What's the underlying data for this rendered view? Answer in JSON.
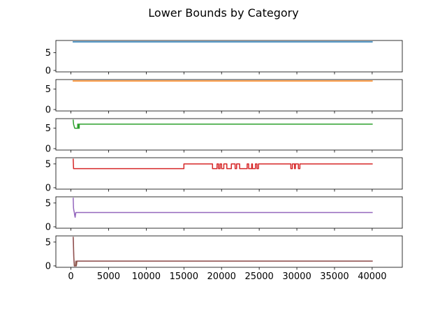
{
  "chart_data": {
    "type": "line",
    "title": "Lower Bounds by Category",
    "xlim": [
      -2000,
      44000
    ],
    "x_ticks": [
      0,
      5000,
      10000,
      15000,
      20000,
      25000,
      30000,
      35000,
      40000
    ],
    "x_tick_labels": [
      "0",
      "5000",
      "10000",
      "15000",
      "20000",
      "25000",
      "30000",
      "35000",
      "40000"
    ],
    "y_ticks": [
      0,
      5
    ],
    "y_tick_labels": [
      "0",
      "5"
    ],
    "grid": false,
    "legend": "none",
    "subplots": [
      {
        "ylim": [
          -0.4,
          8.4
        ],
        "color": "#1f77b4",
        "x": [
          300,
          40000
        ],
        "y": [
          8,
          8
        ]
      },
      {
        "ylim": [
          -0.35,
          7.35
        ],
        "color": "#ff7f0e",
        "x": [
          300,
          40000
        ],
        "y": [
          7,
          7
        ]
      },
      {
        "ylim": [
          -0.35,
          7.35
        ],
        "color": "#2ca02c",
        "x": [
          300,
          350,
          500,
          900,
          900,
          1000,
          1000,
          1100,
          1100,
          40000
        ],
        "y": [
          7,
          6,
          5,
          5,
          6,
          6,
          5,
          5,
          6,
          6
        ]
      },
      {
        "ylim": [
          -0.3,
          6.3
        ],
        "color": "#d62728",
        "x": [
          300,
          350,
          15000,
          15000,
          18800,
          18800,
          19400,
          19400,
          19600,
          19600,
          19800,
          19800,
          20000,
          20000,
          20300,
          20300,
          20700,
          20700,
          21300,
          21300,
          21800,
          21800,
          22000,
          22000,
          22400,
          22400,
          23400,
          23400,
          23600,
          23600,
          24000,
          24000,
          24100,
          24100,
          24500,
          24500,
          24700,
          24700,
          24900,
          24900,
          29200,
          29200,
          29400,
          29400,
          29700,
          29700,
          29800,
          29800,
          30200,
          30200,
          30400,
          30400,
          40000
        ],
        "y": [
          6,
          4,
          4,
          5,
          5,
          4,
          4,
          5,
          5,
          4,
          4,
          5,
          5,
          4,
          4,
          5,
          5,
          4,
          4,
          5,
          5,
          4,
          4,
          5,
          5,
          4,
          4,
          5,
          5,
          4,
          4,
          5,
          5,
          4,
          4,
          5,
          5,
          4,
          4,
          5,
          5,
          4,
          4,
          5,
          5,
          4,
          4,
          5,
          5,
          4,
          4,
          5,
          5
        ]
      },
      {
        "ylim": [
          -0.3,
          6.3
        ],
        "color": "#9467bd",
        "x": [
          300,
          340,
          380,
          450,
          500,
          560,
          650,
          800,
          40000
        ],
        "y": [
          6,
          4,
          3.5,
          3,
          2.4,
          2,
          3,
          3,
          3
        ]
      },
      {
        "ylim": [
          -0.3,
          6.3
        ],
        "color": "#8c564b",
        "x": [
          300,
          330,
          380,
          450,
          550,
          600,
          650,
          700,
          720,
          800,
          900,
          1000,
          40000
        ],
        "y": [
          6,
          5,
          2,
          0,
          0,
          0,
          1,
          0,
          0,
          1,
          1,
          1,
          1
        ],
        "overlay_color": "#e377c2",
        "overlay_x": [
          300,
          330,
          380,
          450,
          550,
          620,
          700,
          800,
          900,
          40000
        ],
        "overlay_y": [
          6,
          4,
          1.5,
          0,
          0,
          0,
          1,
          1,
          1,
          1
        ]
      }
    ]
  }
}
